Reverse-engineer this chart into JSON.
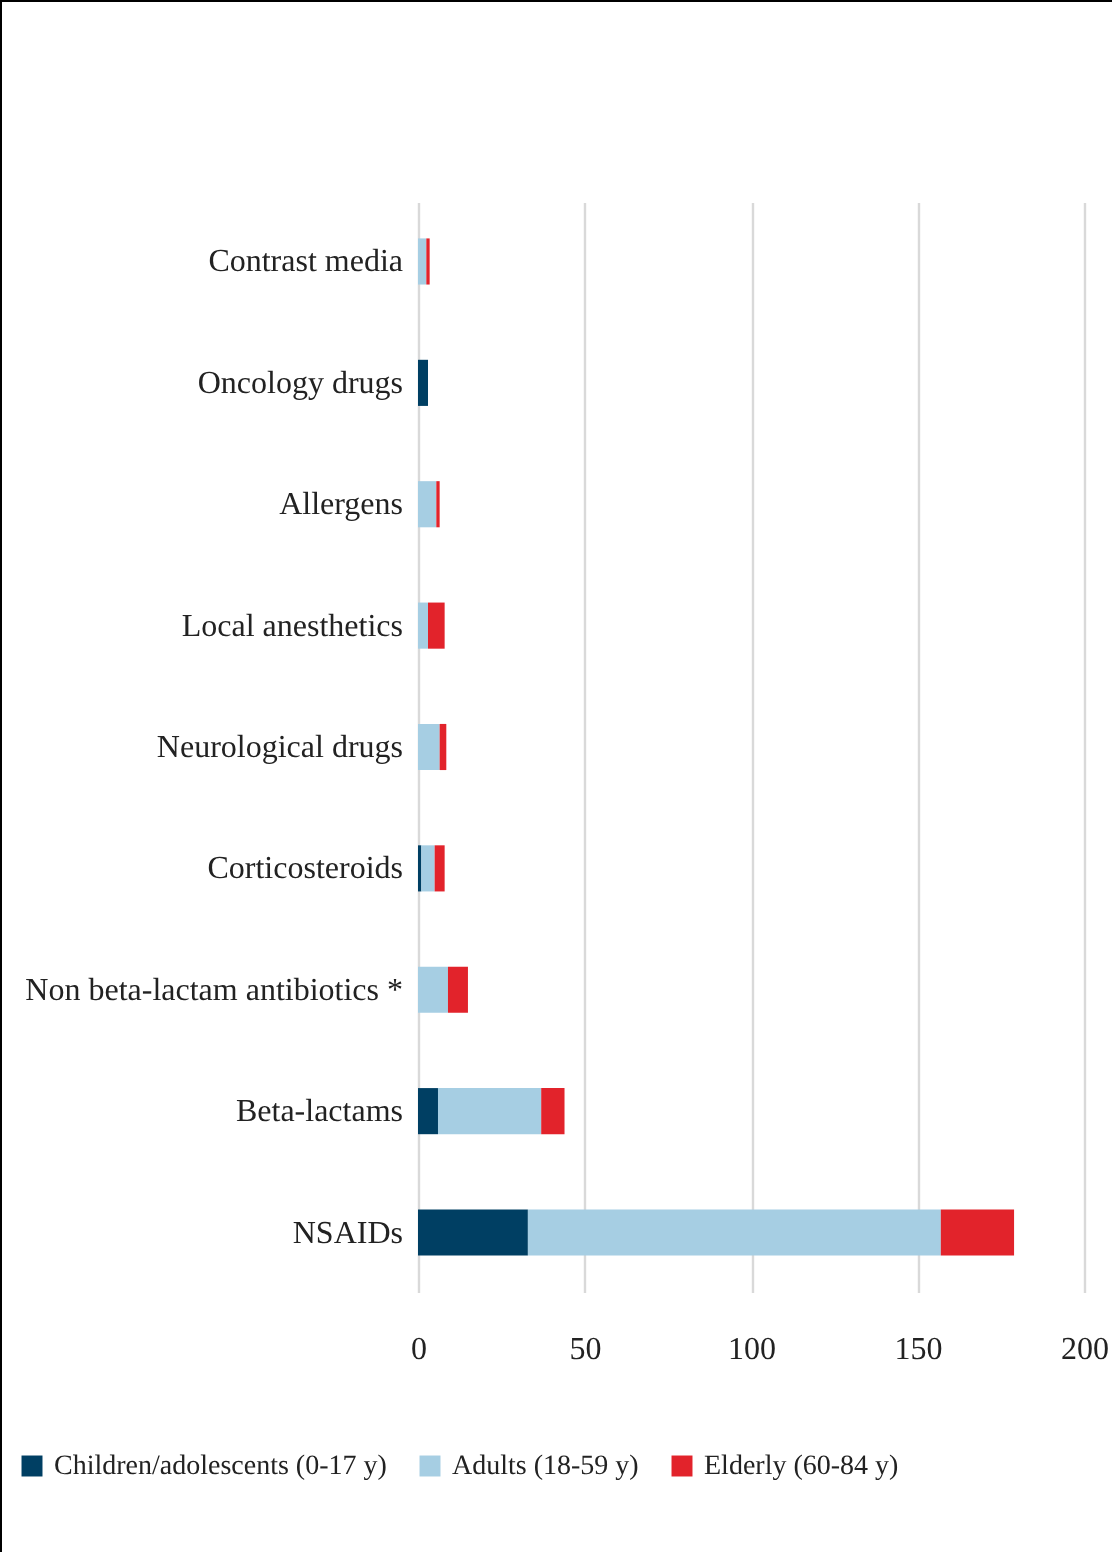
{
  "chart_data": {
    "type": "bar",
    "orientation": "horizontal",
    "stacked": true,
    "categories": [
      "Contrast media",
      "Oncology drugs",
      "Allergens",
      "Local anesthetics",
      "Neurological drugs",
      "Corticosteroids",
      "Non beta-lactam antibiotics *",
      "Beta-lactams",
      "NSAIDs"
    ],
    "series": [
      {
        "name": "Children/adolescents (0-17 y)",
        "color": "#003f63",
        "values": [
          null,
          3,
          null,
          null,
          null,
          1,
          null,
          6,
          33
        ]
      },
      {
        "name": "Adults (18-59 y)",
        "color": "#a6cee3",
        "values": [
          2.5,
          null,
          5.5,
          3,
          6.5,
          4,
          9,
          31,
          124
        ]
      },
      {
        "name": "Elderly (60-84 y)",
        "color": "#e2232b",
        "values": [
          1,
          null,
          1,
          5,
          2,
          3,
          6,
          7,
          22
        ]
      }
    ],
    "xlim": [
      0,
      200
    ],
    "xticks": [
      0,
      50,
      100,
      150,
      200
    ],
    "grid": "x",
    "legend": "bottom"
  }
}
